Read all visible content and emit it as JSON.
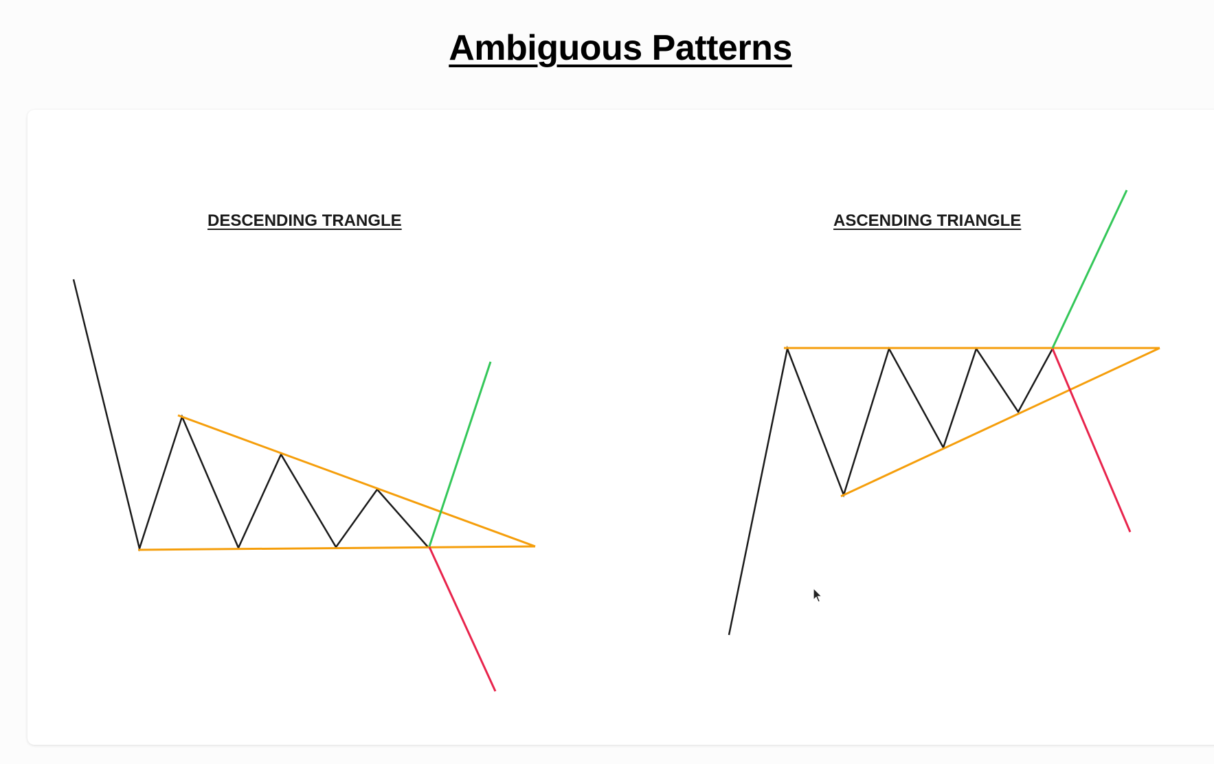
{
  "title": "Ambiguous Patterns",
  "patterns": [
    {
      "id": "descending",
      "title": "DESCENDING TRANGLE"
    },
    {
      "id": "ascending",
      "title": "ASCENDING TRIANGLE"
    }
  ],
  "colors": {
    "price_line": "#1a1a1a",
    "trendline": "#f59e0b",
    "breakout_up": "#34c759",
    "breakout_down": "#e8244c"
  },
  "icons": [
    "mouse-cursor-icon"
  ]
}
